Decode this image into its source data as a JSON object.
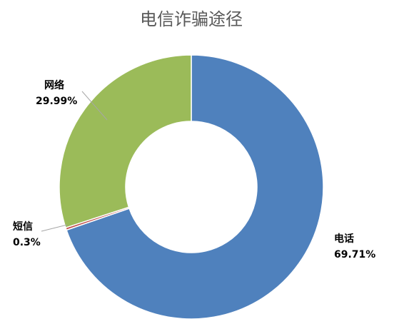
{
  "chart_data": {
    "type": "donut",
    "title": "电信诈骗途径",
    "categories": [
      "电话",
      "短信",
      "网络"
    ],
    "values": [
      69.71,
      0.3,
      29.99
    ],
    "value_labels": [
      "69.71%",
      "0.3%",
      "29.99%"
    ],
    "colors": [
      "#4f81bd",
      "#c0504d",
      "#9bbb59"
    ]
  }
}
